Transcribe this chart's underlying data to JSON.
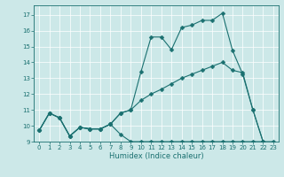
{
  "title": "",
  "xlabel": "Humidex (Indice chaleur)",
  "bg_color": "#cce8e8",
  "line_color": "#1a7070",
  "xlim": [
    -0.5,
    23.5
  ],
  "ylim": [
    9,
    17.6
  ],
  "yticks": [
    9,
    10,
    11,
    12,
    13,
    14,
    15,
    16,
    17
  ],
  "xticks": [
    0,
    1,
    2,
    3,
    4,
    5,
    6,
    7,
    8,
    9,
    10,
    11,
    12,
    13,
    14,
    15,
    16,
    17,
    18,
    19,
    20,
    21,
    22,
    23
  ],
  "line_min_x": [
    0,
    1,
    2,
    3,
    4,
    5,
    6,
    7,
    8,
    9,
    10,
    11,
    12,
    13,
    14,
    15,
    16,
    17,
    18,
    19,
    20,
    21,
    22,
    23
  ],
  "line_min_y": [
    9.7,
    10.8,
    10.5,
    9.35,
    9.9,
    9.8,
    9.8,
    10.1,
    9.45,
    9.0,
    9.0,
    9.0,
    9.0,
    9.0,
    9.0,
    9.0,
    9.0,
    9.0,
    9.0,
    9.0,
    9.0,
    9.0,
    9.0,
    9.0
  ],
  "line_mid_x": [
    0,
    1,
    2,
    3,
    4,
    5,
    6,
    7,
    8,
    9,
    10,
    11,
    12,
    13,
    14,
    15,
    16,
    17,
    18,
    19,
    20,
    21,
    22
  ],
  "line_mid_y": [
    9.7,
    10.8,
    10.5,
    9.35,
    9.9,
    9.8,
    9.8,
    10.1,
    10.8,
    11.0,
    11.6,
    12.0,
    12.3,
    12.65,
    13.0,
    13.25,
    13.5,
    13.75,
    14.0,
    13.5,
    13.35,
    11.0,
    9.0
  ],
  "line_max_x": [
    0,
    1,
    2,
    3,
    4,
    5,
    6,
    7,
    8,
    9,
    10,
    11,
    12,
    13,
    14,
    15,
    16,
    17,
    18,
    19,
    20,
    21,
    22
  ],
  "line_max_y": [
    9.7,
    10.8,
    10.5,
    9.35,
    9.9,
    9.8,
    9.8,
    10.1,
    10.8,
    11.0,
    13.4,
    15.6,
    15.6,
    14.8,
    16.2,
    16.35,
    16.65,
    16.65,
    17.1,
    14.75,
    13.25,
    11.0,
    9.0
  ],
  "markersize": 2.5,
  "linewidth": 0.8,
  "xlabel_fontsize": 6,
  "tick_fontsize": 5,
  "grid_color": "#ffffff",
  "grid_linewidth": 0.5
}
